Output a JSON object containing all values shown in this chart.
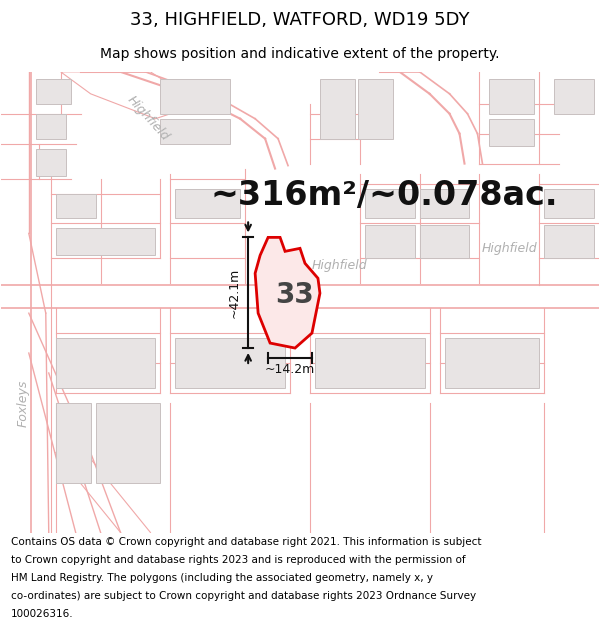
{
  "title": "33, HIGHFIELD, WATFORD, WD19 5DY",
  "subtitle": "Map shows position and indicative extent of the property.",
  "area_text": "~316m²/~0.078ac.",
  "property_number": "33",
  "dim_height": "~42.1m",
  "dim_width": "~14.2m",
  "footer_lines": [
    "Contains OS data © Crown copyright and database right 2021. This information is subject",
    "to Crown copyright and database rights 2023 and is reproduced with the permission of",
    "HM Land Registry. The polygons (including the associated geometry, namely x, y",
    "co-ordinates) are subject to Crown copyright and database rights 2023 Ordnance Survey",
    "100026316."
  ],
  "map_bg": "#ffffff",
  "bld_fc": "#e8e4e4",
  "bld_ec": "#c8c0c0",
  "road_line": "#f0a8a8",
  "prop_fc": "#fce8e8",
  "prop_ec": "#dd0000",
  "label_gray": "#b0b0b0",
  "dim_color": "#111111",
  "area_color": "#111111",
  "title_fs": 13,
  "sub_fs": 10,
  "area_fs": 24,
  "footer_fs": 7.5,
  "label_fs": 9
}
